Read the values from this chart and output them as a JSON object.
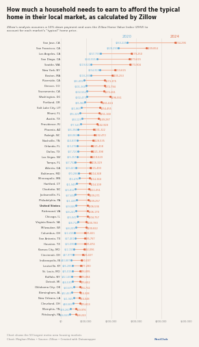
{
  "title": "How much a household needs to earn to afford the typical\nhome in their local market, as calculated by Zillow",
  "subtitle": "Zillow's analysis assumes a 10% down payment and uses the Zillow Home Value Index (ZHVI) to\naccount for each market's “typical” home price.",
  "footer1": "Chart shows the 50 largest metro area housing markets",
  "footer2": "Chart: Meghan Malas • Source: Zillow • Created with Datawrapper",
  "year2020_label": "2020",
  "year2024_label": "2024",
  "cities": [
    "San Jose, CA",
    "San Francisco, CA",
    "Los Angeles, CA",
    "San Diego, CA",
    "Seattle, WA",
    "New York, NY",
    "Boston, MA",
    "Riverside, CA",
    "Denver, CO",
    "Sacramento, CA",
    "Washington, DC",
    "Portland, OR",
    "Salt Lake City, UT",
    "Miami, FL",
    "Austin, TX",
    "Providence, RI",
    "Phoenix, AZ",
    "Raleigh, NC",
    "Nashville, TN",
    "Orlando, FL",
    "Dallas, TX",
    "Las Vegas, NV",
    "Tampa, FL",
    "Atlanta, GA",
    "Baltimore, MD",
    "Minneapolis, MN",
    "Hartford, CT",
    "Charlotte, NC",
    "Jacksonville, FL",
    "Philadelphia, PA",
    "United States",
    "Richmond, VA",
    "Chicago, IL",
    "Virginia Beach, VA",
    "Milwaukee, WI",
    "Columbus, OH",
    "San Antonio, TX",
    "Houston, TX",
    "Kansas City, MO",
    "Cincinnati, OH",
    "Indianapolis, IN",
    "Louisville, KY",
    "St. Louis, MO",
    "Buffalo, NY",
    "Detroit, MI",
    "Oklahoma City, OK",
    "Birmingham, AL",
    "New Orleans, LA",
    "Cleveland, OH",
    "Memphis, TN",
    "Pittsburgh, PA"
  ],
  "bold_cities": [
    "United States"
  ],
  "val2020": [
    263225,
    228293,
    157793,
    142555,
    119821,
    154919,
    118285,
    91899,
    101366,
    102552,
    102473,
    95960,
    81863,
    76329,
    84123,
    77541,
    66394,
    68062,
    64837,
    63278,
    67720,
    65357,
    57752,
    59441,
    70286,
    72476,
    61949,
    55812,
    57634,
    61428,
    59046,
    58241,
    65041,
    68714,
    58209,
    52416,
    57461,
    55595,
    52155,
    47977,
    40887,
    46285,
    45015,
    42140,
    44530,
    50675,
    42453,
    51945,
    48583,
    38260,
    34559
  ],
  "val2024": [
    454296,
    339854,
    279250,
    273615,
    273904,
    213615,
    205253,
    173375,
    172794,
    172261,
    196551,
    161624,
    154455,
    151168,
    149287,
    142928,
    131322,
    132472,
    128535,
    121418,
    121398,
    119529,
    116329,
    115493,
    114348,
    114344,
    114109,
    111051,
    109271,
    109257,
    106536,
    106170,
    104757,
    100783,
    100822,
    95821,
    95767,
    95874,
    92096,
    86027,
    80037,
    77490,
    76895,
    76884,
    75652,
    74732,
    74328,
    74048,
    75813,
    59976,
    58222
  ],
  "color2020": "#6baed6",
  "color2024": "#e06b46",
  "line_color": "#f0b8a0",
  "bg_color": "#f7f3ee",
  "title_color": "#1a1a1a",
  "label_color": "#444444",
  "grid_color": "#e0dbd5",
  "axis_label_color": "#888888",
  "xmax": 500000,
  "xtick_label": [
    "$0",
    "$100,000",
    "$200,000",
    "$300,000",
    "$400,000",
    "$500,000"
  ],
  "xtick_vals": [
    0,
    100000,
    200000,
    300000,
    400000,
    500000
  ]
}
